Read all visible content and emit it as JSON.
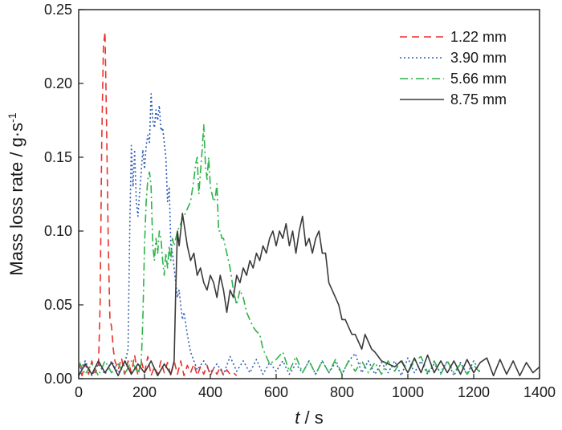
{
  "chart_data": {
    "type": "line",
    "xlabel": "t / s",
    "xlabel_italic": "t",
    "xlabel_rest": " / s",
    "ylabel": "Mass loss rate / g·s",
    "ylabel_sup": "-1",
    "xlim": [
      0,
      1400
    ],
    "ylim": [
      0,
      0.25
    ],
    "xticks": [
      "0",
      "200",
      "400",
      "600",
      "800",
      "1000",
      "1200",
      "1400"
    ],
    "yticks": [
      "0.00",
      "0.05",
      "0.10",
      "0.15",
      "0.20",
      "0.25"
    ],
    "grid": false,
    "legend_position": "top-right",
    "series": [
      {
        "name": "1.22 mm",
        "color": "#e8332e",
        "dash": "dashed",
        "x": [
          0,
          10,
          20,
          30,
          40,
          50,
          60,
          65,
          70,
          75,
          80,
          85,
          90,
          95,
          100,
          105,
          110,
          120,
          130,
          140,
          150,
          160,
          170,
          180,
          190,
          200,
          210,
          220,
          230,
          240,
          250,
          260,
          270,
          280,
          290,
          300,
          310,
          320,
          330,
          340,
          350,
          360,
          370,
          380,
          390,
          400,
          410,
          420,
          430,
          440,
          450,
          460,
          470,
          480
        ],
        "y": [
          0.012,
          0.002,
          0.01,
          0.003,
          0.012,
          0.004,
          0.008,
          0.05,
          0.16,
          0.225,
          0.235,
          0.17,
          0.09,
          0.04,
          0.035,
          0.02,
          0.012,
          0.006,
          0.014,
          0.003,
          0.012,
          0.004,
          0.016,
          0.002,
          0.012,
          0.004,
          0.015,
          0.002,
          0.008,
          0.003,
          0.012,
          0.004,
          0.011,
          0.002,
          0.012,
          0.003,
          0.012,
          0.002,
          0.009,
          0.004,
          0.01,
          0.002,
          0.008,
          0.003,
          0.009,
          0.002,
          0.007,
          0.003,
          0.008,
          0.002,
          0.006,
          0.003,
          0.004,
          0.002
        ]
      },
      {
        "name": "3.90 mm",
        "color": "#2e5cb8",
        "dash": "dotted",
        "x": [
          0,
          20,
          40,
          60,
          80,
          100,
          120,
          140,
          150,
          155,
          160,
          165,
          170,
          175,
          180,
          185,
          190,
          195,
          200,
          205,
          210,
          215,
          220,
          225,
          230,
          235,
          240,
          245,
          250,
          255,
          260,
          265,
          270,
          275,
          280,
          285,
          290,
          295,
          300,
          305,
          310,
          315,
          320,
          330,
          340,
          350,
          360,
          380,
          400,
          420,
          440,
          460,
          480,
          500,
          520,
          540,
          560,
          580,
          600,
          620,
          640,
          660,
          680,
          700,
          720,
          740,
          760,
          780,
          800,
          820,
          840,
          860,
          880,
          900,
          920,
          940,
          960,
          980,
          1000,
          1020,
          1040,
          1060,
          1080,
          1100,
          1120,
          1140,
          1160,
          1180,
          1200,
          1220
        ],
        "y": [
          0.004,
          0.012,
          0.002,
          0.01,
          0.003,
          0.012,
          0.004,
          0.01,
          0.02,
          0.1,
          0.158,
          0.13,
          0.155,
          0.12,
          0.11,
          0.125,
          0.14,
          0.155,
          0.142,
          0.158,
          0.165,
          0.16,
          0.193,
          0.175,
          0.17,
          0.182,
          0.175,
          0.185,
          0.168,
          0.17,
          0.16,
          0.15,
          0.12,
          0.13,
          0.09,
          0.085,
          0.075,
          0.065,
          0.055,
          0.06,
          0.05,
          0.04,
          0.045,
          0.03,
          0.018,
          0.012,
          0.006,
          0.012,
          0.004,
          0.01,
          0.003,
          0.015,
          0.005,
          0.012,
          0.004,
          0.013,
          0.003,
          0.011,
          0.005,
          0.012,
          0.003,
          0.01,
          0.004,
          0.012,
          0.003,
          0.012,
          0.004,
          0.011,
          0.003,
          0.012,
          0.017,
          0.004,
          0.012,
          0.003,
          0.011,
          0.004,
          0.012,
          0.002,
          0.014,
          0.004,
          0.012,
          0.003,
          0.01,
          0.004,
          0.012,
          0.002,
          0.011,
          0.003,
          0.012,
          0.004
        ]
      },
      {
        "name": "5.66 mm",
        "color": "#2db34a",
        "dash": "dashdot",
        "x": [
          0,
          20,
          40,
          60,
          80,
          100,
          120,
          140,
          160,
          180,
          190,
          195,
          200,
          205,
          210,
          215,
          220,
          225,
          230,
          235,
          240,
          245,
          250,
          255,
          260,
          265,
          270,
          275,
          280,
          285,
          290,
          300,
          310,
          320,
          330,
          340,
          350,
          355,
          360,
          365,
          370,
          375,
          380,
          385,
          390,
          395,
          400,
          405,
          410,
          415,
          420,
          425,
          430,
          435,
          440,
          450,
          460,
          470,
          480,
          490,
          500,
          510,
          520,
          530,
          540,
          550,
          560,
          570,
          580,
          600,
          620,
          640,
          660,
          680,
          700,
          720,
          740,
          760,
          780,
          800,
          820,
          840,
          860,
          880,
          900,
          920,
          940,
          960,
          980,
          1000,
          1020,
          1040,
          1060,
          1080,
          1100,
          1120,
          1140,
          1160,
          1180,
          1200,
          1220
        ],
        "y": [
          0.012,
          0.003,
          0.01,
          0.002,
          0.012,
          0.004,
          0.01,
          0.003,
          0.012,
          0.004,
          0.01,
          0.04,
          0.09,
          0.12,
          0.135,
          0.14,
          0.13,
          0.09,
          0.08,
          0.095,
          0.085,
          0.1,
          0.095,
          0.08,
          0.07,
          0.085,
          0.075,
          0.09,
          0.08,
          0.095,
          0.09,
          0.1,
          0.105,
          0.11,
          0.115,
          0.12,
          0.135,
          0.145,
          0.15,
          0.125,
          0.14,
          0.155,
          0.172,
          0.145,
          0.135,
          0.15,
          0.13,
          0.125,
          0.12,
          0.122,
          0.132,
          0.1,
          0.1,
          0.095,
          0.095,
          0.085,
          0.075,
          0.06,
          0.05,
          0.06,
          0.055,
          0.045,
          0.04,
          0.035,
          0.032,
          0.03,
          0.02,
          0.015,
          0.01,
          0.013,
          0.018,
          0.005,
          0.015,
          0.004,
          0.012,
          0.003,
          0.012,
          0.004,
          0.013,
          0.003,
          0.012,
          0.005,
          0.012,
          0.004,
          0.011,
          0.003,
          0.012,
          0.005,
          0.013,
          0.004,
          0.012,
          0.015,
          0.004,
          0.012,
          0.003,
          0.012,
          0.004,
          0.01,
          0.003,
          0.009,
          0.004
        ]
      },
      {
        "name": "8.75 mm",
        "color": "#3a3a3a",
        "dash": "solid",
        "x": [
          0,
          20,
          40,
          60,
          80,
          100,
          120,
          140,
          160,
          180,
          200,
          220,
          240,
          260,
          280,
          290,
          295,
          300,
          305,
          310,
          315,
          320,
          330,
          340,
          350,
          360,
          370,
          380,
          390,
          400,
          410,
          420,
          430,
          440,
          450,
          460,
          470,
          480,
          490,
          500,
          510,
          520,
          530,
          540,
          550,
          560,
          570,
          580,
          590,
          600,
          610,
          620,
          630,
          640,
          650,
          660,
          670,
          680,
          690,
          700,
          710,
          720,
          730,
          740,
          750,
          760,
          770,
          780,
          790,
          800,
          810,
          820,
          830,
          840,
          850,
          860,
          870,
          880,
          890,
          900,
          920,
          940,
          960,
          980,
          1000,
          1020,
          1040,
          1060,
          1080,
          1100,
          1120,
          1140,
          1160,
          1180,
          1200,
          1220,
          1240,
          1260,
          1280,
          1300,
          1320,
          1340,
          1360,
          1380,
          1400
        ],
        "y": [
          0.002,
          0.01,
          0.003,
          0.012,
          0.004,
          0.011,
          0.002,
          0.012,
          0.003,
          0.01,
          0.004,
          0.012,
          0.002,
          0.01,
          0.003,
          0.012,
          0.06,
          0.1,
          0.09,
          0.1,
          0.112,
          0.105,
          0.09,
          0.08,
          0.085,
          0.07,
          0.075,
          0.065,
          0.06,
          0.07,
          0.065,
          0.055,
          0.07,
          0.06,
          0.045,
          0.06,
          0.055,
          0.07,
          0.065,
          0.075,
          0.07,
          0.08,
          0.075,
          0.085,
          0.08,
          0.09,
          0.085,
          0.095,
          0.1,
          0.09,
          0.1,
          0.095,
          0.105,
          0.09,
          0.1,
          0.085,
          0.1,
          0.11,
          0.09,
          0.095,
          0.085,
          0.095,
          0.1,
          0.085,
          0.085,
          0.065,
          0.06,
          0.055,
          0.05,
          0.04,
          0.04,
          0.035,
          0.03,
          0.03,
          0.025,
          0.02,
          0.03,
          0.025,
          0.02,
          0.018,
          0.012,
          0.01,
          0.008,
          0.012,
          0.004,
          0.014,
          0.004,
          0.016,
          0.004,
          0.012,
          0.004,
          0.012,
          0.003,
          0.013,
          0.004,
          0.011,
          0.014,
          0.002,
          0.013,
          0.003,
          0.012,
          0.002,
          0.011,
          0.004,
          0.008
        ]
      }
    ]
  }
}
